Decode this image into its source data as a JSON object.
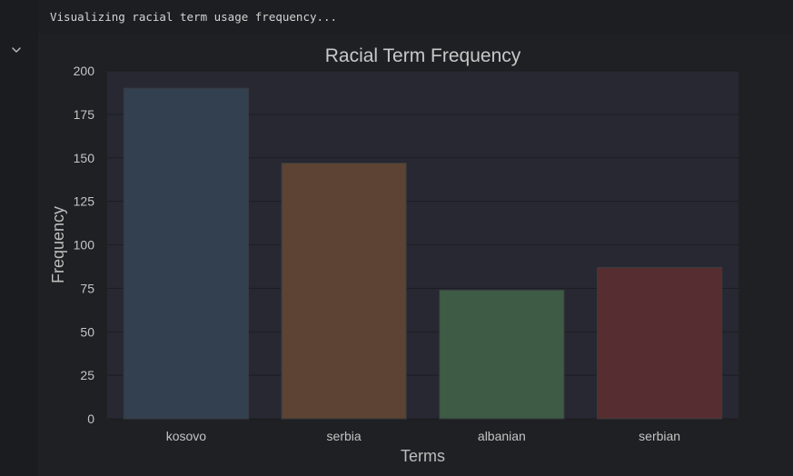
{
  "output": {
    "text": "Visualizing racial term usage frequency..."
  },
  "toolbar": {
    "collapse_icon": "chevron-down-icon"
  },
  "colors": {
    "plot_background": "#272832",
    "grid": "#1c1d22",
    "text": "#c4c4c4"
  },
  "chart_data": {
    "type": "bar",
    "title": "Racial Term Frequency",
    "xlabel": "Terms",
    "ylabel": "Frequency",
    "categories": [
      "kosovo",
      "serbia",
      "albanian",
      "serbian"
    ],
    "values": [
      190,
      147,
      74,
      87
    ],
    "bar_colors": [
      "#32404f",
      "#5c4333",
      "#3e5b46",
      "#562e31"
    ],
    "ylim": [
      0,
      200
    ],
    "yticks": [
      0,
      25,
      50,
      75,
      100,
      125,
      150,
      175,
      200
    ],
    "grid": true
  }
}
